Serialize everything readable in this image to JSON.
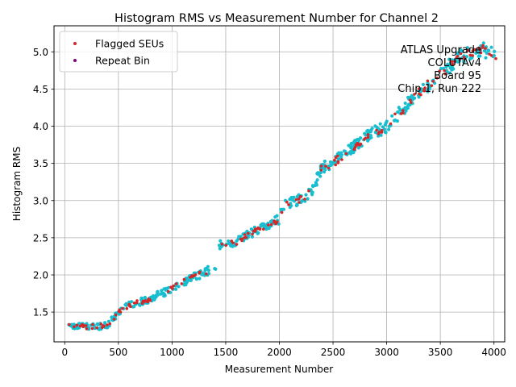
{
  "chart_data": {
    "type": "scatter",
    "title": "Histogram RMS vs Measurement Number for Channel 2",
    "xlabel": "Measurement Number",
    "ylabel": "Histogram RMS",
    "xlim": [
      -100,
      4100
    ],
    "ylim": [
      1.1,
      5.35
    ],
    "xticks": [
      0,
      500,
      1000,
      1500,
      2000,
      2500,
      3000,
      3500,
      4000
    ],
    "xtick_labels": [
      "0",
      "500",
      "1000",
      "1500",
      "2000",
      "2500",
      "3000",
      "3500",
      "4000"
    ],
    "yticks": [
      1.5,
      2.0,
      2.5,
      3.0,
      3.5,
      4.0,
      4.5,
      5.0
    ],
    "ytick_labels": [
      "1.5",
      "2.0",
      "2.5",
      "3.0",
      "3.5",
      "4.0",
      "4.5",
      "5.0"
    ],
    "grid": true,
    "legend_position": "top-left",
    "annotation_lines": [
      "ATLAS Upgrade",
      "COLUTAv4",
      "Board 95",
      "Chip 1, Run 222"
    ],
    "trend_x": [
      0,
      200,
      400,
      500,
      600,
      800,
      1000,
      1200,
      1400,
      1450,
      1600,
      1800,
      2000,
      2050,
      2200,
      2300,
      2400,
      2500,
      2600,
      2800,
      3000,
      3100,
      3300,
      3500,
      3700,
      3900,
      4000
    ],
    "trend_y": [
      1.34,
      1.3,
      1.32,
      1.5,
      1.6,
      1.68,
      1.82,
      1.97,
      2.1,
      2.4,
      2.44,
      2.62,
      2.75,
      2.95,
      3.02,
      3.12,
      3.45,
      3.5,
      3.62,
      3.85,
      4.0,
      4.15,
      4.45,
      4.7,
      4.95,
      5.03,
      4.95
    ],
    "series": [
      {
        "name": "",
        "color": "#17becf",
        "count": 520,
        "noise": 0.028,
        "size": 4.2
      },
      {
        "name": "Flagged SEUs",
        "color": "#d62728",
        "count": 170,
        "noise": 0.018,
        "size": 3.6
      },
      {
        "name": "Repeat Bin",
        "color": "#800080",
        "count": 0,
        "noise": 0.0,
        "size": 3.6
      }
    ],
    "legend_entries": [
      {
        "label": "Flagged SEUs",
        "color": "#d62728"
      },
      {
        "label": "Repeat Bin",
        "color": "#800080"
      }
    ]
  }
}
